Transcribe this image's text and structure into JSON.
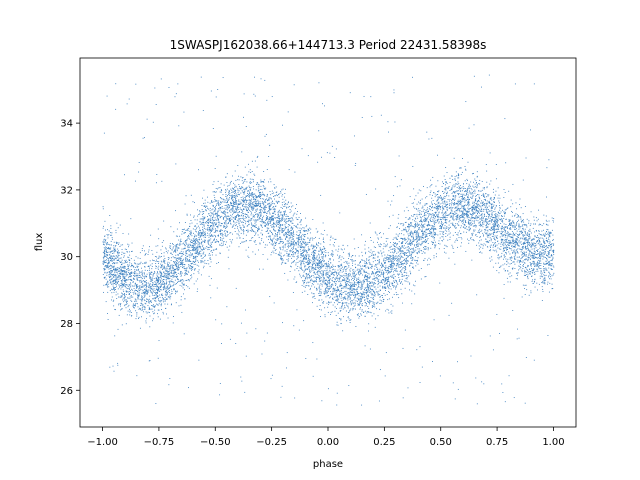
{
  "chart_data": {
    "type": "scatter",
    "title": "1SWASPJ162038.66+144713.3 Period 22431.58398s",
    "xlabel": "phase",
    "ylabel": "flux",
    "xlim": [
      -1.1,
      1.1
    ],
    "ylim": [
      24.9,
      35.95
    ],
    "xticks": [
      -1.0,
      -0.75,
      -0.5,
      -0.25,
      0.0,
      0.25,
      0.5,
      0.75,
      1.0
    ],
    "xtick_labels": [
      "−1.00",
      "−0.75",
      "−0.50",
      "−0.25",
      "0.00",
      "0.25",
      "0.50",
      "0.75",
      "1.00"
    ],
    "yticks": [
      26,
      28,
      30,
      32,
      34
    ],
    "ytick_labels": [
      "26",
      "28",
      "30",
      "32",
      "34"
    ],
    "grid": false,
    "marker_color": "#3a7fbf",
    "series": [
      {
        "phase": [
          -1.0,
          -0.95,
          -0.9,
          -0.85,
          -0.8,
          -0.75,
          -0.7,
          -0.65,
          -0.6,
          -0.55,
          -0.5,
          -0.45,
          -0.4,
          -0.35,
          -0.3,
          -0.25,
          -0.2,
          -0.15,
          -0.1,
          -0.05,
          0.0,
          0.05,
          0.1,
          0.15,
          0.2,
          0.25,
          0.3,
          0.35,
          0.4,
          0.45,
          0.5,
          0.55,
          0.6,
          0.65,
          0.7,
          0.75,
          0.8,
          0.85,
          0.9,
          0.95,
          1.0
        ],
        "flux_center": [
          30.1,
          29.6,
          29.3,
          29.1,
          29.1,
          29.2,
          29.5,
          29.9,
          30.3,
          30.7,
          31.0,
          31.3,
          31.5,
          31.5,
          31.4,
          31.1,
          30.8,
          30.4,
          30.0,
          29.7,
          29.4,
          29.2,
          29.1,
          29.1,
          29.3,
          29.6,
          29.9,
          30.3,
          30.7,
          31.0,
          31.3,
          31.5,
          31.5,
          31.4,
          31.2,
          30.9,
          30.6,
          30.3,
          30.1,
          30.1,
          30.1
        ],
        "flux_spread": 1.0,
        "outlier_range": [
          25.5,
          35.5
        ]
      }
    ]
  }
}
